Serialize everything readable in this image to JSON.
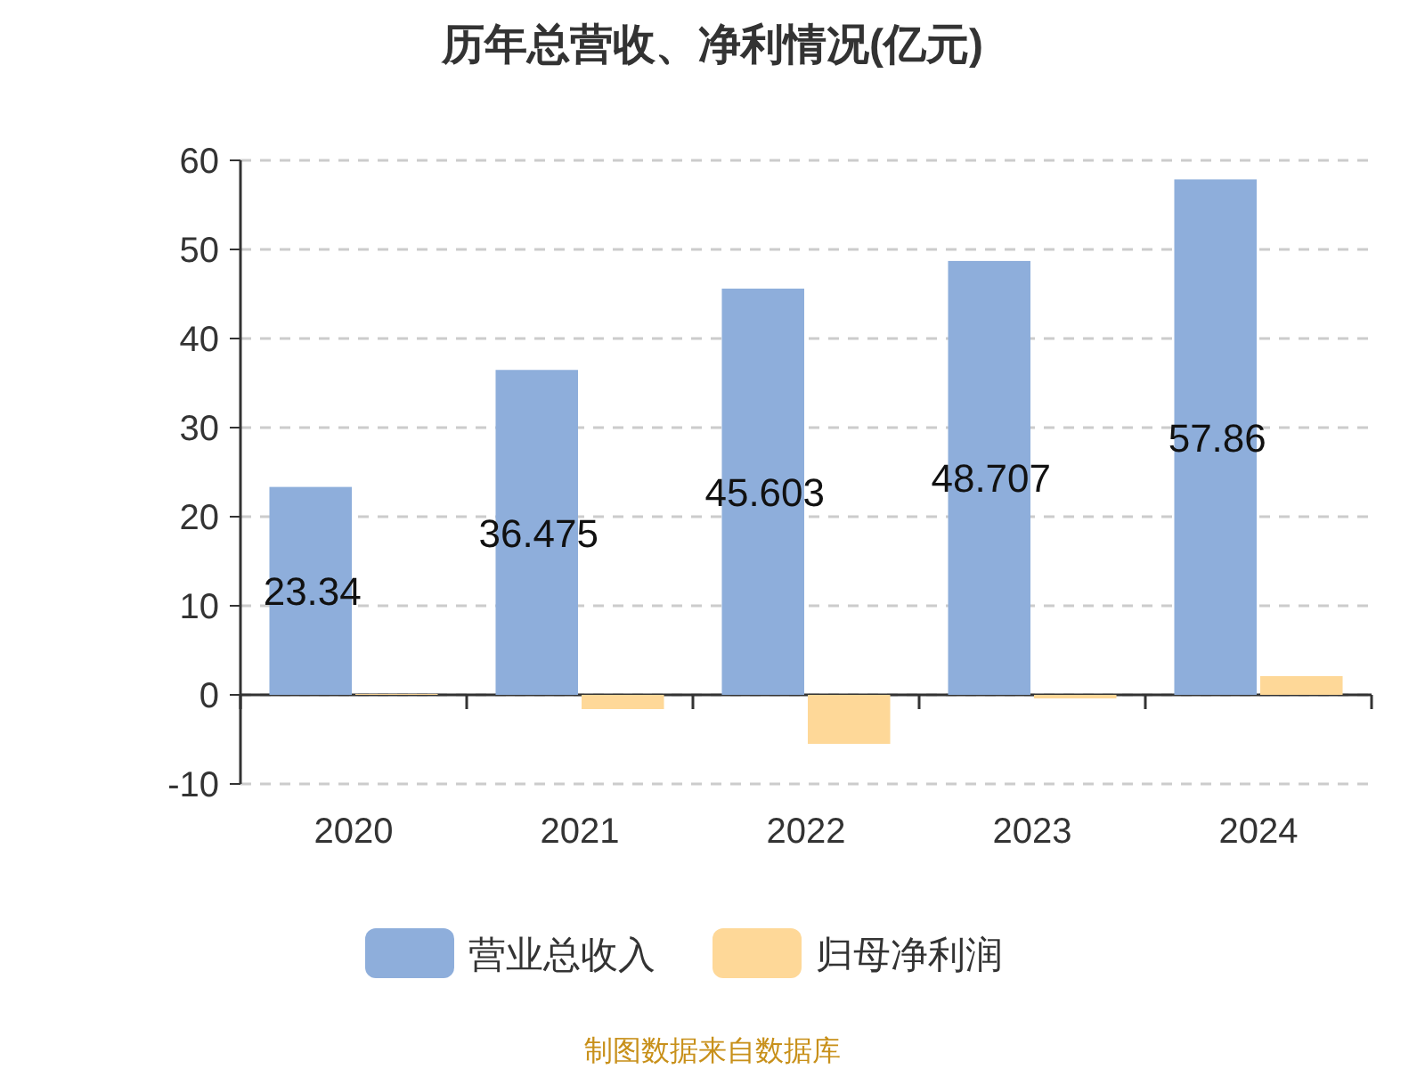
{
  "chart_data": {
    "type": "bar",
    "title": "历年总营收、净利情况(亿元)",
    "categories": [
      "2020",
      "2021",
      "2022",
      "2023",
      "2024"
    ],
    "series": [
      {
        "name": "营业总收入",
        "color": "#8eaedb",
        "values": [
          23.34,
          36.475,
          45.603,
          48.707,
          57.86
        ],
        "value_labels": [
          "23.34",
          "36.475",
          "45.603",
          "48.707",
          "57.86"
        ]
      },
      {
        "name": "归母净利润",
        "color": "#fed898",
        "values": [
          0.1,
          -1.6,
          -5.5,
          -0.4,
          2.1
        ]
      }
    ],
    "ylim": [
      -10,
      60
    ],
    "yticks": [
      -10,
      0,
      10,
      20,
      30,
      40,
      50,
      60
    ],
    "grid": "y",
    "legend": "bottom",
    "annotations": [
      "制图数据来自数据库"
    ]
  }
}
